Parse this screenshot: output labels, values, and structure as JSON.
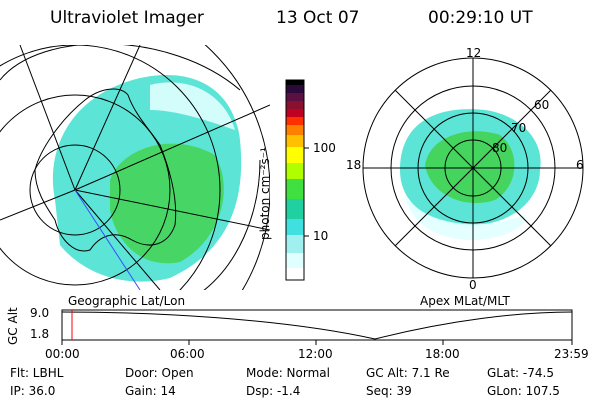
{
  "header": {
    "title": "Ultraviolet Imager",
    "date": "13 Oct 07",
    "time": "00:29:10 UT"
  },
  "colorbar": {
    "unit_label": "photon cm⁻²s⁻¹",
    "ticks": [
      "100",
      "10"
    ],
    "colors": [
      "#000000",
      "#2a0a3a",
      "#5a1040",
      "#8a1030",
      "#c00020",
      "#ff3000",
      "#ff8000",
      "#ffc000",
      "#ffff00",
      "#b0ff00",
      "#40e040",
      "#20d0a0",
      "#40e0e0",
      "#a0f0f0",
      "#e0ffff",
      "#ffffff"
    ]
  },
  "left_map": {
    "projection_label": "Geographic Lat/Lon"
  },
  "right_map": {
    "projection_label": "Apex  MLat/MLT",
    "mlt_labels": {
      "top": "12",
      "bottom": "0",
      "left": "18",
      "right": "6"
    },
    "mlat_labels": [
      "60",
      "70",
      "80"
    ]
  },
  "altitude_plot": {
    "ylabel": "GC Alt",
    "ymax_label": "9.0",
    "ymin_label": "1.8",
    "time_ticks": [
      "00:00",
      "06:00",
      "12:00",
      "18:00",
      "23:59"
    ],
    "current_time_fraction": 0.02
  },
  "footer": {
    "col1": [
      "Flt: LBHL",
      "IP: 36.0"
    ],
    "col2": [
      "Door: Open",
      "Gain: 14"
    ],
    "col3": [
      "Mode: Normal",
      "Dsp:    -1.4"
    ],
    "col4": [
      "GC Alt: 7.1 Re",
      "Seq: 39"
    ],
    "col5": [
      "GLat: -74.5",
      "GLon: 107.5"
    ]
  }
}
